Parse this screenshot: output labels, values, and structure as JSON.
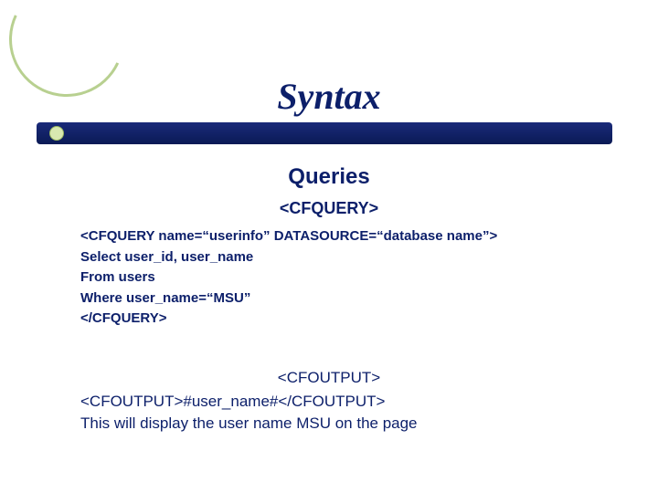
{
  "title": "Syntax",
  "subtitle": "Queries",
  "heading1": "<CFQUERY>",
  "code": {
    "l1": "<CFQUERY  name=“userinfo” DATASOURCE=“database name”>",
    "l2": "Select user_id, user_name",
    "l3": "From users",
    "l4": "Where user_name=“MSU”",
    "l5": "</CFQUERY>"
  },
  "heading2": "<CFOUTPUT>",
  "output": {
    "l1": "<CFOUTPUT>#user_name#</CFOUTPUT>",
    "l2": "This will display the user name MSU on the page"
  },
  "colors": {
    "text": "#0c1f6a",
    "accent": "#b8d090",
    "bar": "#0a1a55"
  }
}
